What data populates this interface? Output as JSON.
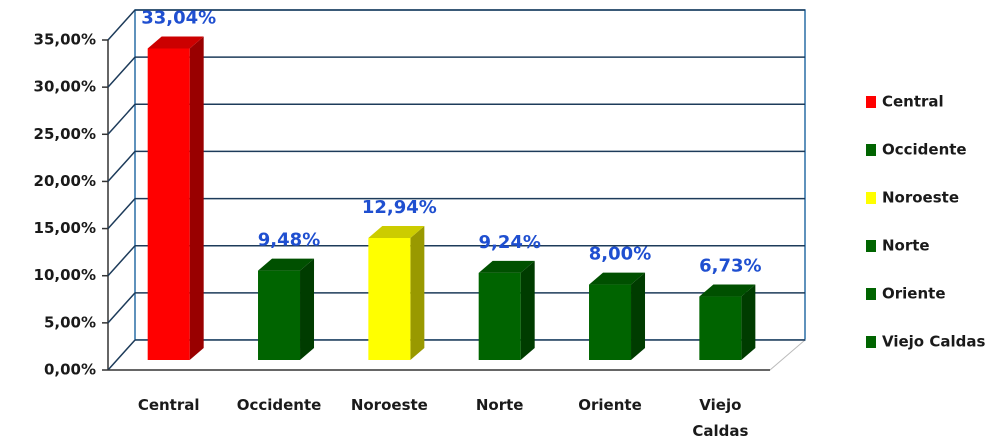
{
  "chart_data": {
    "type": "bar3d",
    "categories": [
      "Central",
      "Occidente",
      "Noroeste",
      "Norte",
      "Oriente",
      "Viejo Caldas"
    ],
    "values": [
      33.04,
      9.48,
      12.94,
      9.24,
      8.0,
      6.73
    ],
    "value_labels": [
      "33,04%",
      "9,48%",
      "12,94%",
      "9,24%",
      "8,00%",
      "6,73%"
    ],
    "colors": [
      "#ff0000",
      "#006400",
      "#ffff00",
      "#006400",
      "#006400",
      "#006400"
    ],
    "ylim": [
      0,
      35
    ],
    "yticks": [
      {
        "value": 0,
        "label": "0,00%"
      },
      {
        "value": 5,
        "label": "5,00%"
      },
      {
        "value": 10,
        "label": "10,00%"
      },
      {
        "value": 15,
        "label": "15,00%"
      },
      {
        "value": 20,
        "label": "20,00%"
      },
      {
        "value": 25,
        "label": "25,00%"
      },
      {
        "value": 30,
        "label": "30,00%"
      },
      {
        "value": 35,
        "label": "35,00%"
      }
    ],
    "grid": true,
    "legend": "right"
  }
}
